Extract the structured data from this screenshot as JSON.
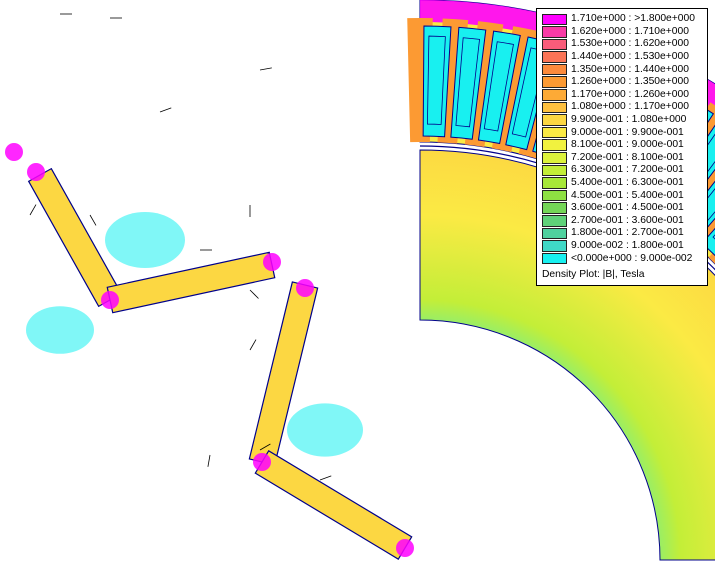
{
  "legend": {
    "ranges": [
      {
        "label": "1.710e+000 : >1.800e+000",
        "color": "#ff00ff"
      },
      {
        "label": "1.620e+000 : 1.710e+000",
        "color": "#f83aa6"
      },
      {
        "label": "1.530e+000 : 1.620e+000",
        "color": "#f95c7a"
      },
      {
        "label": "1.440e+000 : 1.530e+000",
        "color": "#fb7456"
      },
      {
        "label": "1.350e+000 : 1.440e+000",
        "color": "#fc8a3c"
      },
      {
        "label": "1.260e+000 : 1.350e+000",
        "color": "#fc9a33"
      },
      {
        "label": "1.170e+000 : 1.260e+000",
        "color": "#fdaa36"
      },
      {
        "label": "1.080e+000 : 1.170e+000",
        "color": "#fdc03f"
      },
      {
        "label": "9.900e-001 : 1.080e+000",
        "color": "#fcd742"
      },
      {
        "label": "9.000e-001 : 9.900e-001",
        "color": "#fbea44"
      },
      {
        "label": "8.100e-001 : 9.000e-001",
        "color": "#f1f23f"
      },
      {
        "label": "7.200e-001 : 8.100e-001",
        "color": "#dcf23b"
      },
      {
        "label": "6.300e-001 : 7.200e-001",
        "color": "#c3ee38"
      },
      {
        "label": "5.400e-001 : 6.300e-001",
        "color": "#a7e838"
      },
      {
        "label": "4.500e-001 : 5.400e-001",
        "color": "#8ee042"
      },
      {
        "label": "3.600e-001 : 4.500e-001",
        "color": "#74d657"
      },
      {
        "label": "2.700e-001 : 3.600e-001",
        "color": "#5fd179"
      },
      {
        "label": "1.800e-001 : 2.700e-001",
        "color": "#4fd19e"
      },
      {
        "label": "9.000e-002 : 1.800e-001",
        "color": "#3fd8c6"
      },
      {
        "label": "<0.000e+000 : 9.000e-002",
        "color": "#18f0f0"
      }
    ],
    "caption": "Density Plot: |B|, Tesla"
  },
  "palette": {
    "stator_yoke": "#fbea44",
    "tooth": "#fc9a33",
    "rotor_core": "#fbea44",
    "shaft_region": "#18f0f0",
    "winding": "#18f0f0",
    "magnet": "#fcd742",
    "saturation": "#ff00ff",
    "outline": "#00008b"
  }
}
